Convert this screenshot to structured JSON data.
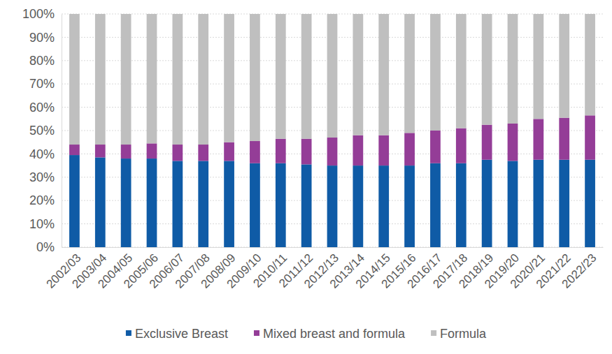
{
  "chart_data": {
    "type": "bar",
    "stacked": true,
    "grid": true,
    "legend": "bottom",
    "categories": [
      "2002/03",
      "2003/04",
      "2004/05",
      "2005/06",
      "2006/07",
      "2007/08",
      "2008/09",
      "2009/10",
      "2010/11",
      "2011/12",
      "2012/13",
      "2013/14",
      "2014/15",
      "2015/16",
      "2016/17",
      "2017/18",
      "2018/19",
      "2019/20",
      "2020/21",
      "2021/22",
      "2022/23"
    ],
    "series": [
      {
        "name": "Exclusive Breast",
        "color": "#0f5ba6",
        "values": [
          39.5,
          38.5,
          38,
          38,
          37,
          37,
          37,
          36,
          36,
          35.5,
          35,
          35,
          35,
          35,
          36,
          36,
          37.5,
          37,
          37.5,
          37.5,
          37.5
        ]
      },
      {
        "name": "Mixed breast and formula",
        "color": "#943d97",
        "values": [
          4.5,
          5.5,
          6,
          6.5,
          7,
          7,
          8,
          9.5,
          10.5,
          11,
          12,
          13,
          13,
          14,
          14,
          15,
          15,
          16,
          17.5,
          18,
          19
        ]
      },
      {
        "name": "Formula",
        "color": "#bfbfbf",
        "values": [
          56,
          56,
          56,
          55.5,
          56,
          56,
          55,
          54.5,
          53.5,
          53.5,
          53,
          52,
          52,
          51,
          50,
          49,
          47.5,
          47,
          45,
          44.5,
          43.5
        ]
      }
    ],
    "ylim": [
      0,
      100
    ],
    "yticks": [
      {
        "value": 0,
        "label": "0%"
      },
      {
        "value": 10,
        "label": "10%"
      },
      {
        "value": 20,
        "label": "20%"
      },
      {
        "value": 30,
        "label": "30%"
      },
      {
        "value": 40,
        "label": "40%"
      },
      {
        "value": 50,
        "label": "50%"
      },
      {
        "value": 60,
        "label": "60%"
      },
      {
        "value": 70,
        "label": "70%"
      },
      {
        "value": 80,
        "label": "80%"
      },
      {
        "value": 90,
        "label": "90%"
      },
      {
        "value": 100,
        "label": "100%"
      }
    ]
  }
}
